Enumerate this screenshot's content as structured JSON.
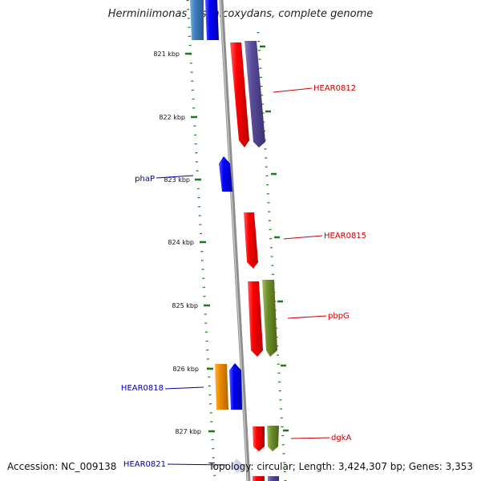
{
  "title": "Herminiimonas arsenicoxydans, complete genome",
  "accession": "Accession: NC_009138",
  "summary": "Topology: circular; Length: 3,424,307 bp; Genes: 3,353",
  "colors": {
    "backbone": "#8e8e8e",
    "tick": "#1a7a1a",
    "label_forward": "#cc0000",
    "label_reverse": "#0000aa"
  },
  "ticks": [
    {
      "label": "821 kbp"
    },
    {
      "label": "822 kbp"
    },
    {
      "label": "823 kbp"
    },
    {
      "label": "824 kbp"
    },
    {
      "label": "825 kbp"
    },
    {
      "label": "826 kbp"
    },
    {
      "label": "827 kbp"
    }
  ],
  "gene_labels": [
    {
      "text": "HEAR0812",
      "strand": "forward"
    },
    {
      "text": "phaP",
      "strand": "reverse"
    },
    {
      "text": "HEAR0815",
      "strand": "forward"
    },
    {
      "text": "pbpG",
      "strand": "forward"
    },
    {
      "text": "HEAR0818",
      "strand": "reverse"
    },
    {
      "text": "dgkA",
      "strand": "forward"
    },
    {
      "text": "HEAR0821",
      "strand": "reverse"
    }
  ]
}
